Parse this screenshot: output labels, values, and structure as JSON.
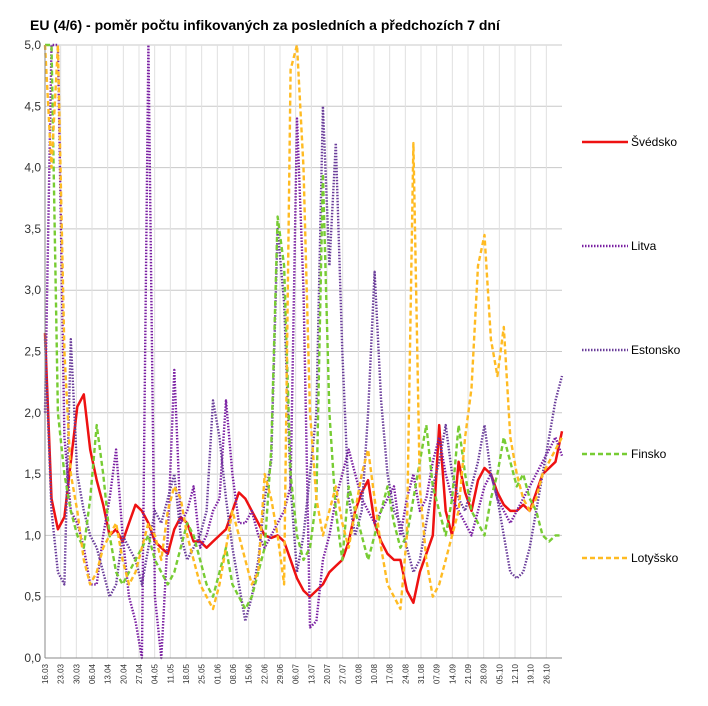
{
  "chart_data": {
    "type": "line",
    "title": "EU (4/6) - poměr počtu infikovaných za posledních a předchozích 7 dní",
    "xlabel": "",
    "ylabel": "",
    "ylim": [
      0,
      5
    ],
    "yticks": [
      "0,0",
      "0,5",
      "1,0",
      "1,5",
      "2,0",
      "2,5",
      "3,0",
      "3,5",
      "4,0",
      "4,5",
      "5,0"
    ],
    "grid": true,
    "legend_position": "right",
    "x_tick_labels": [
      "16.03",
      "23.03",
      "30.03",
      "06.04",
      "13.04",
      "20.04",
      "27.04",
      "04.05",
      "11.05",
      "18.05",
      "25.05",
      "01.06",
      "08.06",
      "15.06",
      "22.06",
      "29.06",
      "06.07",
      "13.07",
      "20.07",
      "27.07",
      "03.08",
      "10.08",
      "17.08",
      "24.08",
      "31.08",
      "07.09",
      "14.09",
      "21.09",
      "28.09",
      "05.10",
      "12.10",
      "19.10",
      "26.10"
    ],
    "series": [
      {
        "name": "Švédsko",
        "color": "#ee1111",
        "style": "solid",
        "values": [
          2.65,
          1.3,
          1.05,
          1.15,
          1.6,
          2.05,
          2.15,
          1.7,
          1.45,
          1.25,
          1.0,
          1.05,
          0.95,
          1.1,
          1.25,
          1.2,
          1.1,
          0.95,
          0.9,
          0.85,
          1.05,
          1.15,
          1.1,
          0.95,
          0.95,
          0.9,
          0.95,
          1.0,
          1.05,
          1.2,
          1.35,
          1.3,
          1.2,
          1.1,
          1.0,
          0.98,
          1.0,
          0.95,
          0.8,
          0.65,
          0.55,
          0.5,
          0.55,
          0.6,
          0.7,
          0.75,
          0.8,
          0.95,
          1.2,
          1.35,
          1.45,
          1.1,
          0.95,
          0.85,
          0.8,
          0.8,
          0.55,
          0.45,
          0.7,
          0.85,
          1.0,
          1.9,
          1.2,
          1.0,
          1.6,
          1.35,
          1.2,
          1.45,
          1.55,
          1.5,
          1.35,
          1.25,
          1.2,
          1.2,
          1.25,
          1.2,
          1.35,
          1.5,
          1.55,
          1.6,
          1.85
        ]
      },
      {
        "name": "Litva",
        "color": "#7a1fa2",
        "style": "dotted",
        "values": [
          2.0,
          5.0,
          5.0,
          1.8,
          1.2,
          1.1,
          0.9,
          0.6,
          0.6,
          1.0,
          1.3,
          1.7,
          1.0,
          0.5,
          0.3,
          0.0,
          5.0,
          0.5,
          0.0,
          1.0,
          2.35,
          1.1,
          1.2,
          1.4,
          0.9,
          1.0,
          1.2,
          1.3,
          2.1,
          1.5,
          1.1,
          1.1,
          1.2,
          1.0,
          0.9,
          1.0,
          1.1,
          1.2,
          1.4,
          4.4,
          3.0,
          0.25,
          0.3,
          0.8,
          1.0,
          1.3,
          1.5,
          1.7,
          1.5,
          1.3,
          1.2,
          1.1,
          1.2,
          1.3,
          1.4,
          1.0,
          1.3,
          1.5,
          1.2,
          1.3,
          1.6,
          1.8,
          1.5,
          1.3,
          1.2,
          1.1,
          1.0,
          1.2,
          1.4,
          1.5,
          1.3,
          1.2,
          1.1,
          1.2,
          1.3,
          1.4,
          1.5,
          1.6,
          1.7,
          1.8,
          1.65
        ]
      },
      {
        "name": "Estonsko",
        "color": "#6a3d9a",
        "style": "dotted",
        "values": [
          2.6,
          1.2,
          0.7,
          0.6,
          2.6,
          1.5,
          1.2,
          1.0,
          0.9,
          0.7,
          0.5,
          0.6,
          1.0,
          0.9,
          0.8,
          0.6,
          0.9,
          1.2,
          1.1,
          1.3,
          1.5,
          1.0,
          0.8,
          0.9,
          1.0,
          1.2,
          2.1,
          1.8,
          1.3,
          0.9,
          0.6,
          0.3,
          0.5,
          0.8,
          1.3,
          1.6,
          3.5,
          2.9,
          1.4,
          0.7,
          1.0,
          1.5,
          2.0,
          4.5,
          3.2,
          4.2,
          2.5,
          1.3,
          1.0,
          1.2,
          2.0,
          3.15,
          2.1,
          1.5,
          1.2,
          1.1,
          0.9,
          0.7,
          0.8,
          1.1,
          1.4,
          1.6,
          1.9,
          1.5,
          1.3,
          1.2,
          1.4,
          1.6,
          1.9,
          1.5,
          1.3,
          1.0,
          0.7,
          0.65,
          0.7,
          0.9,
          1.2,
          1.5,
          1.8,
          2.1,
          2.3
        ]
      },
      {
        "name": "Finsko",
        "color": "#77cc33",
        "style": "dashed",
        "values": [
          5.0,
          5.0,
          2.0,
          1.5,
          1.2,
          1.0,
          0.9,
          1.3,
          1.9,
          1.5,
          1.0,
          0.7,
          0.6,
          0.7,
          0.8,
          0.9,
          1.0,
          0.8,
          0.7,
          0.6,
          0.7,
          0.9,
          1.1,
          1.0,
          0.8,
          0.6,
          0.5,
          0.7,
          0.9,
          0.6,
          0.5,
          0.4,
          0.5,
          0.7,
          0.9,
          1.7,
          3.6,
          3.2,
          1.5,
          1.0,
          0.8,
          0.9,
          1.3,
          3.95,
          2.0,
          1.2,
          0.8,
          1.4,
          1.2,
          1.0,
          0.8,
          1.0,
          1.2,
          1.4,
          1.1,
          0.9,
          1.0,
          1.3,
          1.6,
          1.9,
          1.4,
          1.2,
          1.0,
          1.3,
          1.9,
          1.5,
          1.2,
          1.1,
          1.0,
          1.3,
          1.5,
          1.8,
          1.6,
          1.4,
          1.5,
          1.3,
          1.2,
          1.0,
          0.95,
          1.0,
          1.0
        ]
      },
      {
        "name": "Lotyšsko",
        "color": "#ffbb22",
        "style": "dashed",
        "values": [
          5.0,
          4.0,
          5.0,
          2.5,
          1.5,
          1.2,
          0.8,
          0.6,
          0.7,
          0.9,
          1.0,
          1.1,
          0.8,
          0.6,
          0.7,
          0.9,
          1.1,
          1.0,
          0.8,
          1.2,
          1.4,
          1.3,
          1.0,
          0.8,
          0.6,
          0.5,
          0.4,
          0.6,
          0.9,
          1.2,
          1.0,
          0.8,
          0.6,
          0.7,
          1.5,
          1.3,
          1.0,
          0.6,
          4.8,
          5.0,
          4.0,
          2.0,
          1.3,
          1.0,
          1.2,
          1.4,
          1.1,
          0.9,
          1.2,
          1.5,
          1.7,
          1.3,
          0.9,
          0.6,
          0.5,
          0.4,
          1.0,
          4.2,
          1.4,
          0.8,
          0.5,
          0.6,
          0.8,
          1.0,
          1.2,
          1.8,
          2.2,
          3.2,
          3.45,
          2.6,
          2.3,
          2.7,
          1.8,
          1.5,
          1.3,
          1.2,
          1.3,
          1.5,
          1.6,
          1.7,
          1.8
        ]
      }
    ]
  }
}
